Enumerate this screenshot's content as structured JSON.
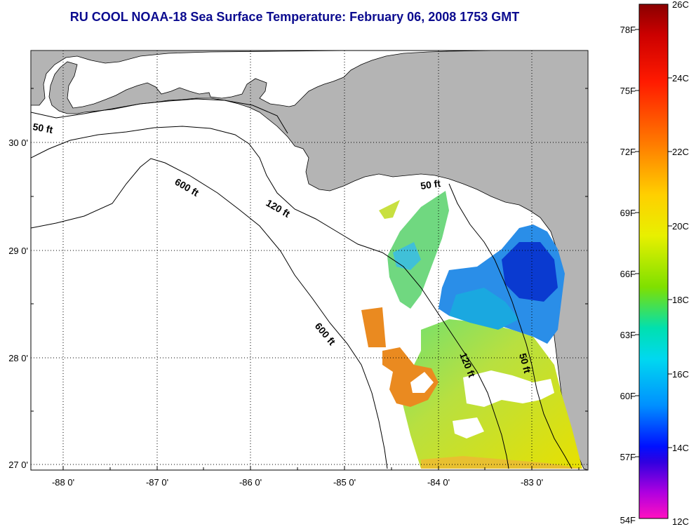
{
  "title": "RU COOL  NOAA-18  Sea Surface Temperature:  February 06, 2008 1753 GMT",
  "colors": {
    "land": "#b4b4b4",
    "water_nodata": "#ffffff",
    "title": "#0b0b8f"
  },
  "map": {
    "lon_ticks": [
      "-88 0'",
      "-87 0'",
      "-86 0'",
      "-85 0'",
      "-84 0'",
      "-83 0'"
    ],
    "lat_ticks": [
      "30 0'",
      "29 0'",
      "28 0'",
      "27 0'"
    ],
    "depth_labels": [
      "50 ft",
      "600 ft",
      "120 ft",
      "50 ft",
      "600 ft",
      "120 ft",
      "50 ft"
    ]
  },
  "colorbar": {
    "fahrenheit_labels": [
      "78F",
      "75F",
      "72F",
      "69F",
      "66F",
      "63F",
      "60F",
      "57F",
      "54F"
    ],
    "celsius_labels": [
      "26C",
      "24C",
      "22C",
      "20C",
      "18C",
      "16C",
      "14C",
      "12C"
    ]
  }
}
